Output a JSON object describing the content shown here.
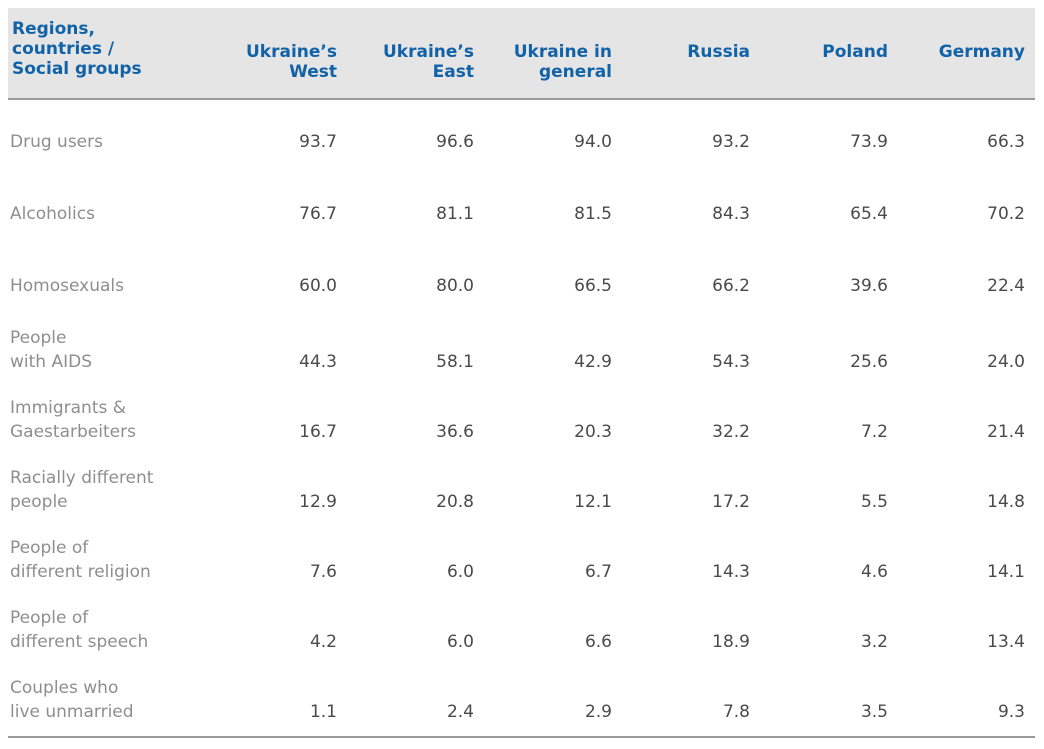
{
  "header": {
    "first": "Regions,\ncountries /\nSocial groups",
    "columns": [
      "Ukraine’s\nWest",
      "Ukraine’s\nEast",
      "Ukraine in\ngeneral",
      "Russia",
      "Poland",
      "Germany"
    ]
  },
  "rows": [
    {
      "label": "Drug users",
      "values": [
        "93.7",
        "96.6",
        "94.0",
        "93.2",
        "73.9",
        "66.3"
      ]
    },
    {
      "label": "Alcoholics",
      "values": [
        "76.7",
        "81.1",
        "81.5",
        "84.3",
        "65.4",
        "70.2"
      ]
    },
    {
      "label": "Homosexuals",
      "values": [
        "60.0",
        "80.0",
        "66.5",
        "66.2",
        "39.6",
        "22.4"
      ]
    },
    {
      "label": "People\nwith AIDS",
      "values": [
        "44.3",
        "58.1",
        "42.9",
        "54.3",
        "25.6",
        "24.0"
      ]
    },
    {
      "label": "Immigrants &\nGaestarbeiters",
      "values": [
        "16.7",
        "36.6",
        "20.3",
        "32.2",
        "7.2",
        "21.4"
      ]
    },
    {
      "label": "Racially different\npeople",
      "values": [
        "12.9",
        "20.8",
        "12.1",
        "17.2",
        "5.5",
        "14.8"
      ]
    },
    {
      "label": "People of\ndifferent religion",
      "values": [
        "7.6",
        "6.0",
        "6.7",
        "14.3",
        "4.6",
        "14.1"
      ]
    },
    {
      "label": "People of\ndifferent speech",
      "values": [
        "4.2",
        "6.0",
        "6.6",
        "18.9",
        "3.2",
        "13.4"
      ]
    },
    {
      "label": "Couples who\nlive unmarried",
      "values": [
        "1.1",
        "2.4",
        "2.9",
        "7.8",
        "3.5",
        "9.3"
      ]
    }
  ]
}
